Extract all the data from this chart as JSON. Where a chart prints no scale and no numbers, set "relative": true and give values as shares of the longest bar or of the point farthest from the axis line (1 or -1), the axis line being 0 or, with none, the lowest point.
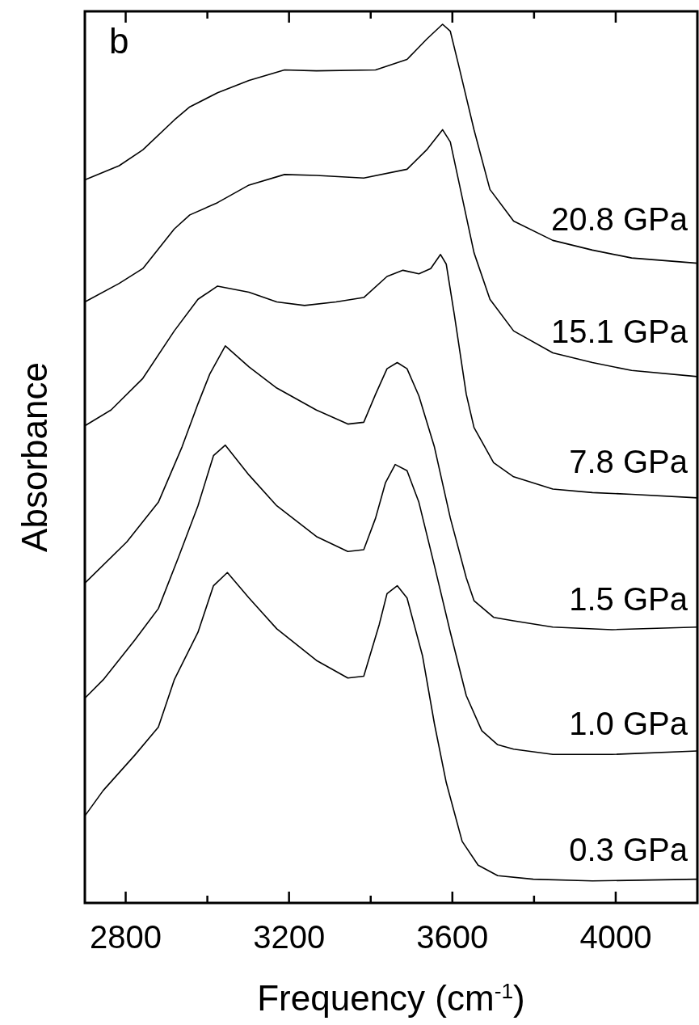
{
  "chart_data": {
    "type": "line",
    "relative": true,
    "xlabel": "Frequency (cm$^{-1}$)",
    "ylabel": "Absorbance",
    "annotations": [
      "b"
    ],
    "xlim": [
      2700,
      4200
    ],
    "xticks": [
      2800,
      {
        "value": 3000,
        "label": null
      },
      3200,
      {
        "value": 3400,
        "label": null
      },
      3600,
      {
        "value": 3800,
        "label": null
      },
      4000
    ],
    "series": [
      {
        "name": "20.8 GPa",
        "color": "#000000",
        "x": [
          2700,
          2784,
          2842,
          2919,
          2957,
          3025,
          3102,
          3189,
          3267,
          3412,
          3489,
          3537,
          3576,
          3595,
          3614,
          3653,
          3692,
          3750,
          3846,
          3943,
          4039,
          4200
        ],
        "values": [
          0.823,
          0.839,
          0.857,
          0.891,
          0.906,
          0.922,
          0.936,
          0.948,
          0.947,
          0.948,
          0.96,
          0.983,
          1.0,
          0.992,
          0.956,
          0.88,
          0.812,
          0.776,
          0.754,
          0.743,
          0.734,
          0.728
        ]
      },
      {
        "name": "15.1 GPa",
        "color": "#000000",
        "x": [
          2700,
          2784,
          2842,
          2919,
          2957,
          3025,
          3102,
          3189,
          3267,
          3383,
          3489,
          3537,
          3576,
          3595,
          3624,
          3653,
          3692,
          3750,
          3846,
          3943,
          4039,
          4200
        ],
        "values": [
          0.684,
          0.705,
          0.722,
          0.767,
          0.783,
          0.797,
          0.817,
          0.829,
          0.828,
          0.825,
          0.835,
          0.857,
          0.88,
          0.866,
          0.803,
          0.74,
          0.687,
          0.651,
          0.626,
          0.615,
          0.606,
          0.599
        ]
      },
      {
        "name": "7.8 GPa",
        "color": "#000000",
        "x": [
          2700,
          2764,
          2842,
          2919,
          2977,
          3025,
          3102,
          3170,
          3238,
          3315,
          3383,
          3440,
          3479,
          3518,
          3547,
          3571,
          3585,
          3605,
          3634,
          3653,
          3701,
          3750,
          3846,
          3943,
          4039,
          4200
        ],
        "values": [
          0.543,
          0.561,
          0.597,
          0.651,
          0.687,
          0.702,
          0.695,
          0.684,
          0.68,
          0.684,
          0.689,
          0.713,
          0.72,
          0.716,
          0.722,
          0.738,
          0.727,
          0.669,
          0.579,
          0.541,
          0.501,
          0.485,
          0.471,
          0.467,
          0.465,
          0.461
        ]
      },
      {
        "name": "1.5 GPa",
        "color": "#000000",
        "x": [
          2700,
          2803,
          2880,
          2938,
          2977,
          3006,
          3044,
          3102,
          3170,
          3267,
          3344,
          3383,
          3412,
          3440,
          3465,
          3489,
          3518,
          3556,
          3595,
          3634,
          3653,
          3701,
          3750,
          3846,
          3991,
          4200
        ],
        "values": [
          0.364,
          0.411,
          0.456,
          0.519,
          0.568,
          0.602,
          0.634,
          0.61,
          0.586,
          0.561,
          0.545,
          0.547,
          0.579,
          0.608,
          0.615,
          0.608,
          0.577,
          0.519,
          0.438,
          0.37,
          0.344,
          0.325,
          0.321,
          0.314,
          0.311,
          0.314
        ]
      },
      {
        "name": "1.0 GPa",
        "color": "#000000",
        "x": [
          2700,
          2745,
          2822,
          2880,
          2929,
          2977,
          3015,
          3044,
          3102,
          3170,
          3267,
          3344,
          3383,
          3412,
          3436,
          3460,
          3489,
          3518,
          3556,
          3595,
          3634,
          3672,
          3711,
          3750,
          3846,
          3991,
          4200
        ],
        "values": [
          0.233,
          0.254,
          0.299,
          0.335,
          0.393,
          0.452,
          0.509,
          0.521,
          0.487,
          0.452,
          0.417,
          0.4,
          0.402,
          0.438,
          0.478,
          0.499,
          0.492,
          0.456,
          0.384,
          0.308,
          0.236,
          0.196,
          0.18,
          0.175,
          0.169,
          0.169,
          0.173
        ]
      },
      {
        "name": "0.3 GPa",
        "color": "#000000",
        "x": [
          2700,
          2745,
          2822,
          2880,
          2919,
          2977,
          3015,
          3049,
          3102,
          3170,
          3267,
          3344,
          3383,
          3421,
          3440,
          3465,
          3489,
          3527,
          3556,
          3585,
          3624,
          3663,
          3711,
          3798,
          3943,
          4200
        ],
        "values": [
          0.099,
          0.128,
          0.168,
          0.2,
          0.254,
          0.308,
          0.361,
          0.376,
          0.347,
          0.312,
          0.276,
          0.256,
          0.258,
          0.317,
          0.352,
          0.361,
          0.347,
          0.281,
          0.204,
          0.137,
          0.07,
          0.043,
          0.031,
          0.027,
          0.025,
          0.027
        ]
      }
    ]
  }
}
